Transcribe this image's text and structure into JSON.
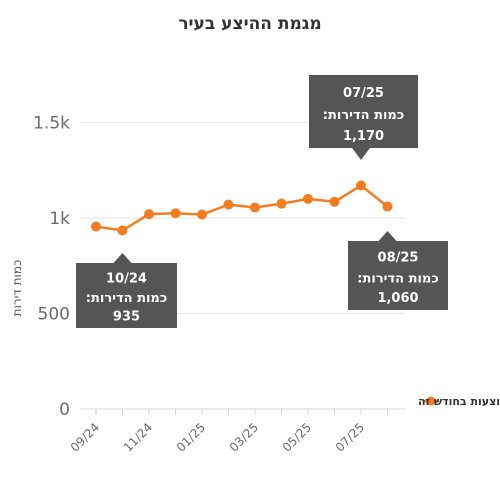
{
  "chart_data": {
    "type": "line",
    "title": "מגמת ההיצע בעיר",
    "ylabel": "כמות דירות",
    "xlabel": "",
    "ylim": [
      0,
      1700
    ],
    "y_ticks": [
      {
        "value": 0,
        "label": "0"
      },
      {
        "value": 500,
        "label": "500"
      },
      {
        "value": 1000,
        "label": "1k"
      },
      {
        "value": 1500,
        "label": "1.5k"
      }
    ],
    "x": [
      "09/24",
      "10/24",
      "11/24",
      "12/24",
      "01/25",
      "02/25",
      "03/25",
      "04/25",
      "05/25",
      "06/25",
      "07/25",
      "08/25"
    ],
    "x_tick_labels": [
      "09/24",
      "11/24",
      "01/25",
      "03/25",
      "05/25",
      "07/25"
    ],
    "series": [
      {
        "name": "כמות הדירות המוצעות בחודש זה",
        "color": "#f47c20",
        "values": [
          955,
          935,
          1020,
          1025,
          1018,
          1070,
          1055,
          1075,
          1100,
          1085,
          1170,
          1060
        ]
      }
    ],
    "grid": true,
    "legend_position": "right",
    "annotations": [
      {
        "index": 1,
        "date": "10/24",
        "label": "כמות הדירות:",
        "value": "935"
      },
      {
        "index": 10,
        "date": "07/25",
        "label": "כמות הדירות:",
        "value": "1,170"
      },
      {
        "index": 11,
        "date": "08/25",
        "label": "כמות הדירות:",
        "value": "1,060"
      }
    ]
  }
}
